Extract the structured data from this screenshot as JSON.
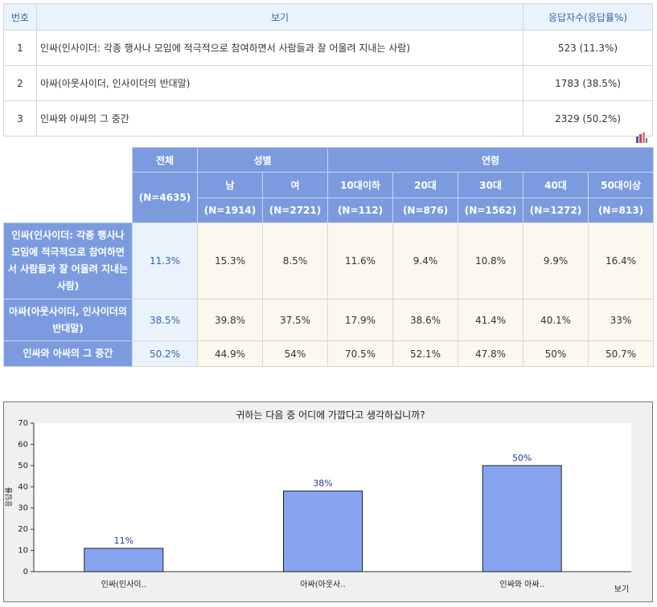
{
  "summary_table": {
    "headers": [
      "번호",
      "보기",
      "응답자수(응답률%)"
    ],
    "rows": [
      {
        "no": "1",
        "option": "인싸(인사이더: 각종 행사나 모임에 적극적으로 참여하면서 사람들과 잘 어울려 지내는 사람)",
        "count": "523 (11.3%)"
      },
      {
        "no": "2",
        "option": "아싸(아웃사이더, 인사이더의 반대말)",
        "count": "1783 (38.5%)"
      },
      {
        "no": "3",
        "option": "인싸와 아싸의 그 중간",
        "count": "2329 (50.2%)"
      }
    ]
  },
  "cross_table": {
    "total_label": "전체",
    "total_n": "(N=4635)",
    "gender_label": "성별",
    "age_label": "연령",
    "gender_cols": [
      {
        "label": "남",
        "n": "(N=1914)"
      },
      {
        "label": "여",
        "n": "(N=2721)"
      }
    ],
    "age_cols": [
      {
        "label": "10대이하",
        "n": "(N=112)"
      },
      {
        "label": "20대",
        "n": "(N=876)"
      },
      {
        "label": "30대",
        "n": "(N=1562)"
      },
      {
        "label": "40대",
        "n": "(N=1272)"
      },
      {
        "label": "50대이상",
        "n": "(N=813)"
      }
    ],
    "rows": [
      {
        "label": "인싸(인사이더: 각종 행사나 모임에 적극적으로 참여하면서 사람들과 잘 어울려 지내는 사람)",
        "values": [
          "11.3%",
          "15.3%",
          "8.5%",
          "11.6%",
          "9.4%",
          "10.8%",
          "9.9%",
          "16.4%"
        ]
      },
      {
        "label": "아싸(아웃사이더, 인사이더의 반대말)",
        "values": [
          "38.5%",
          "39.8%",
          "37.5%",
          "17.9%",
          "38.6%",
          "41.4%",
          "40.1%",
          "33%"
        ]
      },
      {
        "label": "인싸와 아싸의 그 중간",
        "values": [
          "50.2%",
          "44.9%",
          "54%",
          "70.5%",
          "52.1%",
          "47.8%",
          "50%",
          "50.7%"
        ]
      }
    ]
  },
  "chart_data": {
    "type": "bar",
    "title": "귀하는 다음 중 어디에 가깝다고 생각하십니까?",
    "categories": [
      "인싸(인사이..",
      "아싸(아웃사..",
      "인싸와 아싸.."
    ],
    "values": [
      11,
      38,
      50
    ],
    "data_labels": [
      "11%",
      "38%",
      "50%"
    ],
    "xlabel": "보기",
    "ylabel": "응답률",
    "ylim": [
      0,
      70
    ],
    "yticks": [
      0,
      10,
      20,
      30,
      40,
      50,
      60,
      70
    ],
    "grid": false,
    "bar_color": "#86a4ef",
    "label_color": "#1a3c9c"
  },
  "colors": {
    "header_blue": "#7c9bdf",
    "total_bg": "#eaf3fb",
    "cell_bg": "#fdf8ee",
    "chart_bg": "#f0f0f0"
  },
  "icons": {
    "stats_icon": "bar-chart-icon"
  }
}
